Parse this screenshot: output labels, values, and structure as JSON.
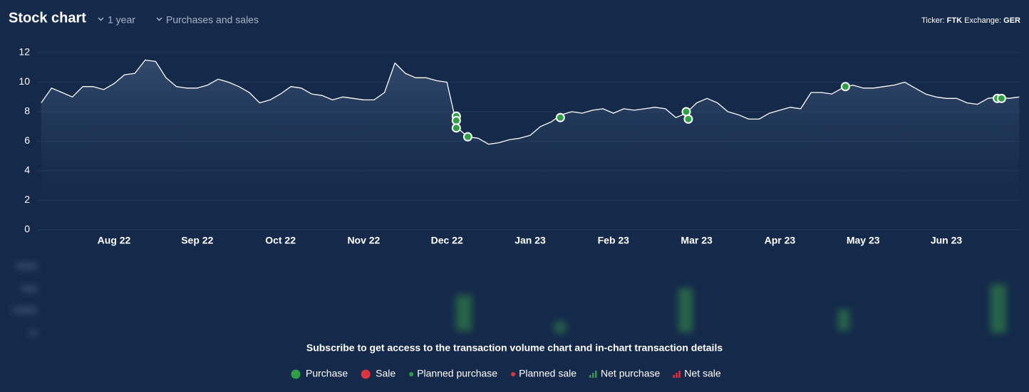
{
  "chart_data": {
    "type": "line",
    "title": "Stock chart",
    "period": "1 year",
    "filter": "Purchases and sales",
    "ticker_label": "Ticker:",
    "ticker": "FTK",
    "exchange_label": "Exchange:",
    "exchange": "GER",
    "categories": [
      null,
      null,
      null,
      null,
      null,
      null,
      null,
      "Aug 22",
      null,
      null,
      null,
      null,
      null,
      null,
      null,
      "Sep 22",
      null,
      null,
      null,
      null,
      null,
      null,
      null,
      "Oct 22",
      null,
      null,
      null,
      null,
      null,
      null,
      null,
      "Nov 22",
      null,
      null,
      null,
      null,
      null,
      null,
      null,
      "Dec 22",
      null,
      null,
      null,
      null,
      null,
      null,
      null,
      "Jan 23",
      null,
      null,
      null,
      null,
      null,
      null,
      null,
      "Feb 23",
      null,
      null,
      null,
      null,
      null,
      null,
      null,
      "Mar 23",
      null,
      null,
      null,
      null,
      null,
      null,
      null,
      "Apr 23",
      null,
      null,
      null,
      null,
      null,
      null,
      null,
      "May 23",
      null,
      null,
      null,
      null,
      null,
      null,
      null,
      "Jun 23",
      null,
      null,
      null,
      null,
      null,
      null,
      null
    ],
    "values": [
      8.6,
      9.6,
      9.3,
      9.0,
      9.7,
      9.7,
      9.5,
      9.9,
      10.5,
      10.6,
      11.5,
      11.4,
      10.3,
      9.7,
      9.6,
      9.6,
      9.8,
      10.2,
      10.0,
      9.7,
      9.3,
      8.6,
      8.8,
      9.2,
      9.7,
      9.6,
      9.2,
      9.1,
      8.8,
      9.0,
      8.9,
      8.8,
      8.8,
      9.3,
      11.3,
      10.6,
      10.3,
      10.3,
      10.1,
      10.0,
      6.9,
      6.3,
      6.2,
      5.8,
      5.9,
      6.1,
      6.2,
      6.4,
      7.0,
      7.3,
      7.8,
      8.0,
      7.9,
      8.1,
      8.2,
      7.9,
      8.2,
      8.1,
      8.2,
      8.3,
      8.2,
      7.6,
      7.9,
      8.6,
      8.9,
      8.6,
      8.0,
      7.8,
      7.5,
      7.5,
      7.9,
      8.1,
      8.3,
      8.2,
      9.3,
      9.3,
      9.2,
      9.6,
      9.8,
      9.6,
      9.6,
      9.7,
      9.8,
      10.0,
      9.6,
      9.2,
      9.0,
      8.9,
      8.9,
      8.6,
      8.5,
      8.9,
      9.0,
      8.9,
      9.0
    ],
    "color": "#ffffff",
    "ylim": [
      0,
      12
    ],
    "yticks": [
      0,
      2,
      4,
      6,
      8,
      10,
      12
    ],
    "grid": true,
    "purchases": {
      "color": "#2ea043",
      "x": [
        39.9,
        39.9,
        39.9,
        41,
        49.9,
        62,
        62.2,
        77.3,
        91.9,
        92.3
      ],
      "values": [
        7.7,
        7.4,
        6.9,
        6.3,
        7.6,
        8.0,
        7.5,
        9.7,
        8.9,
        8.9
      ]
    },
    "notice": "Subscribe to get access to the transaction volume chart and in-chart transaction details",
    "legend": [
      {
        "name": "Purchase",
        "color": "#2ea043",
        "icon": "dot"
      },
      {
        "name": "Sale",
        "color": "#e0323c",
        "icon": "dot"
      },
      {
        "name": "Planned purchase",
        "color": "#2ea043",
        "icon": "small-dot"
      },
      {
        "name": "Planned sale",
        "color": "#e0323c",
        "icon": "small-dot"
      },
      {
        "name": "Net purchase",
        "color": "#2ea043",
        "icon": "bars"
      },
      {
        "name": "Net sale",
        "color": "#e0323c",
        "icon": "bars"
      }
    ]
  }
}
